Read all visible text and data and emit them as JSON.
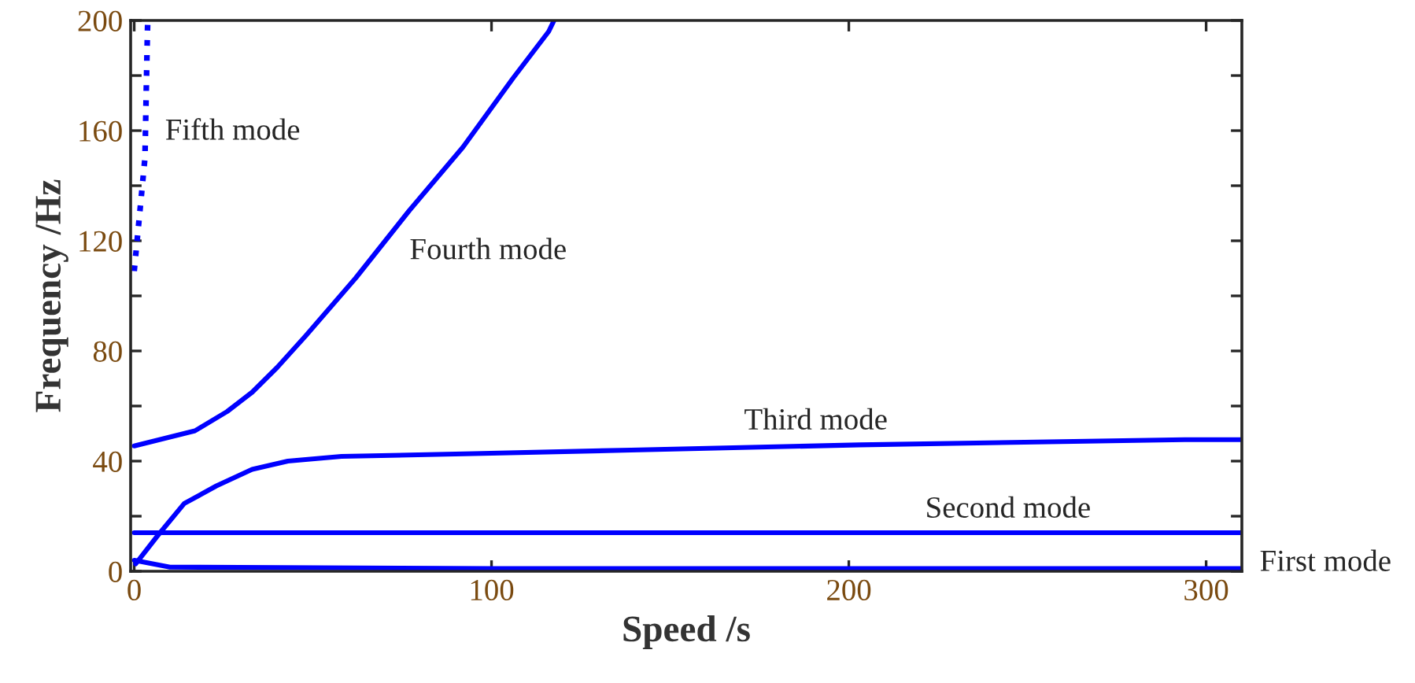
{
  "chart_data": {
    "type": "line",
    "xlabel": "Speed /s",
    "ylabel": "Frequency /Hz",
    "xlim": [
      -1,
      310
    ],
    "ylim": [
      0,
      200
    ],
    "xticks": [
      0,
      100,
      200,
      300
    ],
    "yticks": [
      0,
      {
        "value": 20,
        "label": null
      },
      40,
      {
        "value": 60,
        "label": null
      },
      80,
      {
        "value": 100,
        "label": null
      },
      120,
      {
        "value": 140,
        "label": null
      },
      160,
      {
        "value": 180,
        "label": null
      },
      200
    ],
    "grid": false,
    "line_style": "solid",
    "marker": "none",
    "series": [
      {
        "name": "First mode",
        "color": "#0000ff",
        "x": [
          0,
          10,
          100,
          200,
          310
        ],
        "values": [
          4,
          1.5,
          1,
          1,
          1
        ]
      },
      {
        "name": "Second mode",
        "color": "#0000ff",
        "x": [
          0,
          100,
          200,
          310
        ],
        "values": [
          14,
          14,
          14,
          14
        ]
      },
      {
        "name": "Third mode",
        "color": "#0000ff",
        "x": [
          0.4,
          6.6,
          14,
          23,
          33,
          43,
          58,
          95,
          139,
          203,
          294,
          310
        ],
        "values": [
          2.7,
          13,
          24.6,
          31,
          37,
          40,
          41.7,
          42.7,
          44,
          45.9,
          47.8,
          47.8
        ]
      },
      {
        "name": "Fourth mode",
        "color": "#0000ff",
        "x": [
          0,
          17,
          26,
          33,
          40,
          48,
          62,
          77,
          92,
          106,
          116,
          117.5
        ],
        "values": [
          45.5,
          51,
          58,
          65,
          74,
          85.5,
          106.5,
          131,
          154,
          179,
          196,
          200
        ]
      },
      {
        "name": "Fifth mode",
        "color": "#0000ff",
        "line_style": "dotted",
        "x": [
          0,
          3,
          3.7,
          3.8
        ],
        "values": [
          109,
          150,
          196,
          200
        ]
      }
    ]
  }
}
